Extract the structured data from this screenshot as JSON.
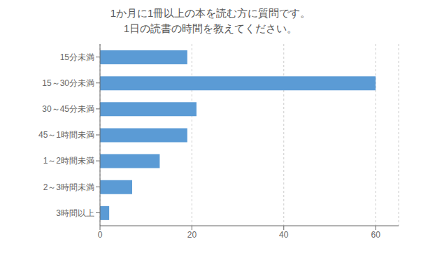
{
  "chart_data": {
    "type": "bar",
    "title": "1か月に1冊以上の本を読む方に質問です。",
    "subtitle": "1日の読書の時間を教えてください。",
    "categories": [
      "15分未満",
      "15～30分未満",
      "30～45分未満",
      "45～1時間未満",
      "1～2時間未満",
      "2～3時間未満",
      "3時間以上"
    ],
    "values": [
      19,
      60,
      21,
      19,
      13,
      7,
      2
    ],
    "color": "#5b9bd5",
    "orientation": "horizontal",
    "xlim": [
      0,
      65
    ],
    "xticks": [
      0,
      20,
      40,
      60
    ],
    "grid": true
  }
}
